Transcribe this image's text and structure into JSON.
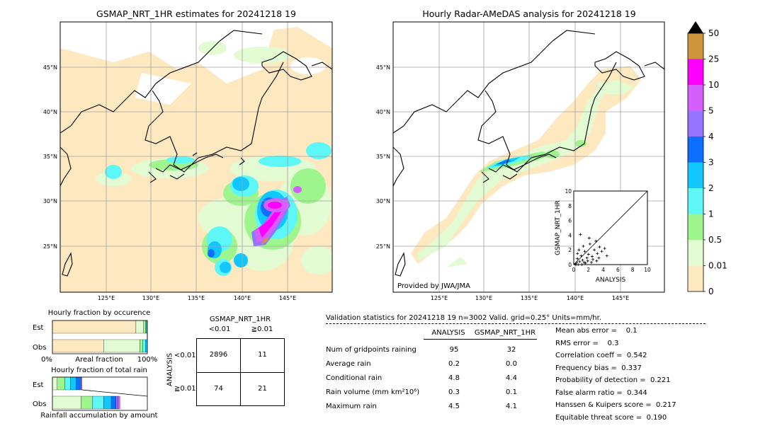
{
  "left_map": {
    "title": "GSMAP_NRT_1HR estimates for 20241218 19",
    "lat_labels": [
      "45°N",
      "40°N",
      "35°N",
      "30°N",
      "25°N"
    ],
    "lon_labels": [
      "125°E",
      "130°E",
      "135°E",
      "140°E",
      "145°E"
    ]
  },
  "right_map": {
    "title": "Hourly Radar-AMeDAS analysis for 20241218 19",
    "lat_labels": [
      "45°N",
      "40°N",
      "35°N",
      "30°N",
      "25°N"
    ],
    "lon_labels": [
      "125°E",
      "130°E",
      "135°E",
      "140°E",
      "145°E"
    ],
    "credit": "Provided by JWA/JMA"
  },
  "colorbar": {
    "labels": [
      "0",
      "0.01",
      "0.5",
      "1",
      "2",
      "3",
      "4",
      "5",
      "10",
      "25",
      "50"
    ],
    "colors": [
      "#fde8c0",
      "#e2fbd2",
      "#9ef58e",
      "#5cf7f6",
      "#12c7ff",
      "#0c6ffe",
      "#9574ff",
      "#d55efd",
      "#fd00fe",
      "#cd963c"
    ],
    "extend_color": "#000000"
  },
  "chart_data": [
    {
      "type": "bar",
      "title": "Hourly fraction by occurence",
      "categories": [
        "Est",
        "Obs"
      ],
      "xlabel": "Areal fraction",
      "x_ticklabels": [
        "0%",
        "100%"
      ],
      "series": [
        {
          "color": "#fde8c0",
          "values": [
            0.88,
            0.54
          ]
        },
        {
          "color": "#e2fbd2",
          "values": [
            0.08,
            0.38
          ]
        },
        {
          "color": "#9ef58e",
          "values": [
            0.02,
            0.03
          ]
        },
        {
          "color": "#5cf7f6",
          "values": [
            0.01,
            0.03
          ]
        },
        {
          "color": "#12c7ff",
          "values": [
            0.01,
            0.02
          ]
        }
      ]
    },
    {
      "type": "bar",
      "title": "Hourly fraction of total rain",
      "categories": [
        "Est",
        "Obs"
      ],
      "xlabel": "Rainfall accumulation by amount",
      "series": [
        {
          "color": "#e2fbd2",
          "values": [
            0.05,
            0.3
          ]
        },
        {
          "color": "#9ef58e",
          "values": [
            0.08,
            0.12
          ]
        },
        {
          "color": "#5cf7f6",
          "values": [
            0.06,
            0.12
          ]
        },
        {
          "color": "#12c7ff",
          "values": [
            0.06,
            0.08
          ]
        },
        {
          "color": "#0c6ffe",
          "values": [
            0.05,
            0.05
          ]
        },
        {
          "color": "#9574ff",
          "values": [
            0.01,
            0.02
          ]
        },
        {
          "color": "#d55efd",
          "values": [
            0.0,
            0.02
          ]
        }
      ]
    },
    {
      "type": "table",
      "title": "GSMAP_NRT_1HR",
      "col_headers": [
        "<0.01",
        "≧0.01"
      ],
      "row_title": "ANALYSIS",
      "row_headers": [
        "<0.01",
        "≧0.01"
      ],
      "cells": [
        [
          "2896",
          "11"
        ],
        [
          "74",
          "21"
        ]
      ]
    },
    {
      "type": "scatter",
      "xlabel": "ANALYSIS",
      "ylabel": "GSMAP_NRT_1HR",
      "xlim": [
        0,
        10
      ],
      "ylim": [
        0,
        10
      ],
      "ticks": [
        "0",
        "2",
        "4",
        "6",
        "8",
        "10"
      ],
      "points": [
        [
          0.2,
          0.1
        ],
        [
          0.4,
          0.3
        ],
        [
          0.5,
          0.8
        ],
        [
          0.8,
          0.4
        ],
        [
          1.0,
          1.2
        ],
        [
          1.2,
          0.6
        ],
        [
          1.5,
          1.8
        ],
        [
          1.8,
          0.9
        ],
        [
          2.0,
          1.4
        ],
        [
          2.2,
          2.8
        ],
        [
          2.5,
          1.1
        ],
        [
          2.8,
          2.0
        ],
        [
          3.0,
          3.2
        ],
        [
          3.2,
          1.5
        ],
        [
          3.5,
          2.4
        ],
        [
          3.8,
          1.8
        ],
        [
          4.2,
          2.2
        ],
        [
          4.5,
          1.2
        ],
        [
          0.9,
          4.1
        ],
        [
          2.1,
          3.6
        ],
        [
          0.3,
          0.0
        ],
        [
          0.6,
          0.0
        ],
        [
          1.1,
          0.0
        ],
        [
          1.6,
          0.2
        ],
        [
          2.4,
          0.3
        ],
        [
          3.1,
          0.5
        ],
        [
          0.7,
          2.0
        ],
        [
          1.3,
          2.5
        ],
        [
          1.9,
          0.5
        ],
        [
          0.5,
          1.5
        ],
        [
          2.6,
          0.7
        ],
        [
          3.4,
          0.9
        ],
        [
          1.4,
          0.3
        ]
      ]
    }
  ],
  "validation": {
    "header": "Validation statistics for 20241218 19  n=3002 Valid. grid=0.25° Units=mm/hr.",
    "col_analysis": "ANALYSIS",
    "col_gsmap": "GSMAP_NRT_1HR",
    "rows": [
      {
        "label": "Num of gridpoints raining",
        "analysis": "95",
        "gsmap": "32"
      },
      {
        "label": "Average rain",
        "analysis": "0.2",
        "gsmap": "0.0"
      },
      {
        "label": "Conditional rain",
        "analysis": "4.8",
        "gsmap": "4.4"
      },
      {
        "label": "Rain volume (mm km²10⁶)",
        "analysis": "0.3",
        "gsmap": "0.1"
      },
      {
        "label": "Maximum rain",
        "analysis": "4.5",
        "gsmap": "4.1"
      }
    ],
    "scores": [
      "Mean abs error =    0.1",
      "RMS error =    0.3",
      "Correlation coeff =  0.542",
      "Frequency bias =  0.337",
      "Probability of detection =  0.221",
      "False alarm ratio =  0.344",
      "Hanssen & Kuipers score =  0.217",
      "Equitable threat score =  0.190"
    ]
  }
}
